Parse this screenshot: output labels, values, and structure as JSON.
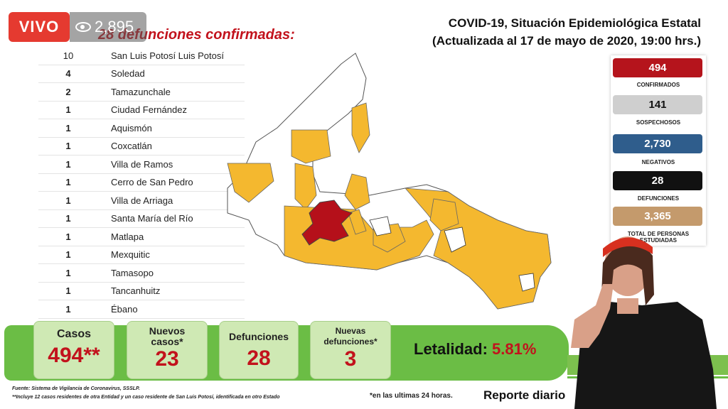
{
  "stream": {
    "live_label": "VIVO",
    "viewers": "2,895"
  },
  "deaths_title": "28 defunciones confirmadas:",
  "deaths_list": [
    {
      "count": "10",
      "municipality": "San Luis Potosí Luis Potosí"
    },
    {
      "count": "4",
      "municipality": "Soledad"
    },
    {
      "count": "2",
      "municipality": "Tamazunchale"
    },
    {
      "count": "1",
      "municipality": "Ciudad Fernández"
    },
    {
      "count": "1",
      "municipality": "Aquismón"
    },
    {
      "count": "1",
      "municipality": "Coxcatlán"
    },
    {
      "count": "1",
      "municipality": "Villa de Ramos"
    },
    {
      "count": "1",
      "municipality": "Cerro de San Pedro"
    },
    {
      "count": "1",
      "municipality": "Villa de Arriaga"
    },
    {
      "count": "1",
      "municipality": "Santa María del Río"
    },
    {
      "count": "1",
      "municipality": "Matlapa"
    },
    {
      "count": "1",
      "municipality": "Mexquitic"
    },
    {
      "count": "1",
      "municipality": "Tamasopo"
    },
    {
      "count": "1",
      "municipality": "Tancanhuitz"
    },
    {
      "count": "1",
      "municipality": "Ébano"
    }
  ],
  "header": {
    "title": "COVID-19, Situación Epidemiológica Estatal",
    "updated": "(Actualizada al 17 de mayo de 2020, 19:00 hrs.)"
  },
  "stats": [
    {
      "value": "494",
      "label": "CONFIRMADOS",
      "color": "#b5141c"
    },
    {
      "value": "141",
      "label": "SOSPECHOSOS",
      "color": "#cfcfcf"
    },
    {
      "value": "2,730",
      "label": "NEGATIVOS",
      "color": "#2f5d8c"
    },
    {
      "value": "28",
      "label": "DEFUNCIONES",
      "color": "#111111"
    },
    {
      "value": "3,365",
      "label": "TOTAL DE PERSONAS ESTUDIADAS",
      "color": "#c49a6c"
    }
  ],
  "summary": {
    "cases_label": "Casos",
    "cases_value": "494**",
    "new_cases_label_1": "Nuevos",
    "new_cases_label_2": "casos*",
    "new_cases_value": "23",
    "deaths_label": "Defunciones",
    "deaths_value": "28",
    "new_deaths_label_1": "Nuevas",
    "new_deaths_label_2": "defunciones*",
    "new_deaths_value": "3",
    "lethality_label": "Letalidad:",
    "lethality_value": "5.81%"
  },
  "footer": {
    "source": "Fuente: Sistema de Vigilancia de Coronavirus, SSSLP.",
    "note": "**Incluye 12 casos residentes de otra Entidad y un caso residente de San Luis Potosí, identificada en otro Estado",
    "last24": "*en las ultimas 24 horas.",
    "report": "Reporte diario"
  },
  "colors": {
    "confirmed_area": "#f4b82f",
    "death_area": "#b5101a",
    "no_case_area": "#ffffff",
    "green": "#6bbd45"
  }
}
